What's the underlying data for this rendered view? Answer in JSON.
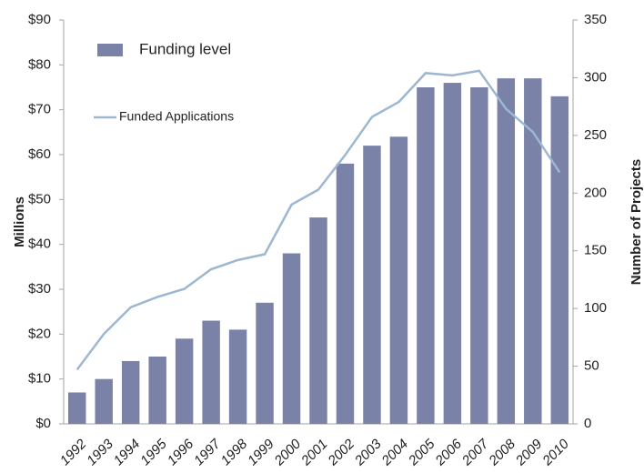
{
  "chart_data": {
    "type": "bar",
    "categories": [
      "1992",
      "1993",
      "1994",
      "1995",
      "1996",
      "1997",
      "1998",
      "1999",
      "2000",
      "2001",
      "2002",
      "2003",
      "2004",
      "2005",
      "2006",
      "2007",
      "2008",
      "2009",
      "2010"
    ],
    "series": [
      {
        "name": "Funding level",
        "type": "bar",
        "color": "#7b82a8",
        "values": [
          7,
          10,
          14,
          15,
          19,
          23,
          21,
          27,
          38,
          46,
          58,
          62,
          64,
          75,
          76,
          75,
          77,
          77,
          73
        ]
      },
      {
        "name": "Funded Applications",
        "type": "line",
        "axis": "y2",
        "color": "#9db7d2",
        "values": [
          47,
          78,
          101,
          110,
          117,
          134,
          142,
          147,
          190,
          203,
          233,
          266,
          279,
          304,
          302,
          306,
          273,
          253,
          218
        ]
      }
    ],
    "ylabel": "Millions",
    "y2label": "Number of Projects",
    "ylim": [
      0,
      90
    ],
    "yticks": [
      {
        "value": 0,
        "label": "$0"
      },
      {
        "value": 10,
        "label": "$10"
      },
      {
        "value": 20,
        "label": "$20"
      },
      {
        "value": 30,
        "label": "$30"
      },
      {
        "value": 40,
        "label": "$40"
      },
      {
        "value": 50,
        "label": "$50"
      },
      {
        "value": 60,
        "label": "$60"
      },
      {
        "value": 70,
        "label": "$70"
      },
      {
        "value": 80,
        "label": "$80"
      },
      {
        "value": 90,
        "label": "$90"
      }
    ],
    "y2lim": [
      0,
      350
    ],
    "y2ticks": [
      0,
      50,
      100,
      150,
      200,
      250,
      300,
      350
    ],
    "grid": false
  }
}
